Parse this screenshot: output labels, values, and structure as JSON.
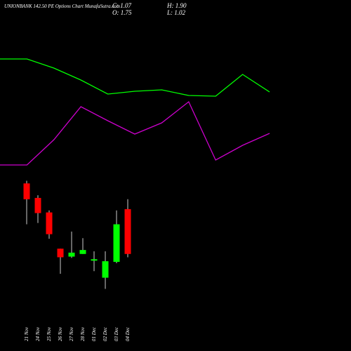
{
  "chart_data": [
    {
      "type": "line",
      "title": "UNIONBANK 142.50  PE Options  Chart MunafaSutra.com",
      "x": [
        0,
        1,
        2,
        3,
        4,
        5,
        6,
        7,
        8,
        9,
        10
      ],
      "xlim": [
        0,
        10
      ],
      "ylim": [
        0,
        100
      ],
      "series": [
        {
          "name": null,
          "color": "#00ff00",
          "values": [
            88,
            88,
            81.5,
            73,
            63,
            65,
            66,
            62,
            61.5,
            77,
            64.5
          ]
        },
        {
          "name": null,
          "color": "#cc00cc",
          "values": [
            12.5,
            12.5,
            30.5,
            54,
            44,
            34.5,
            42.5,
            57.5,
            16,
            26.5,
            35
          ]
        }
      ]
    },
    {
      "type": "candlestick",
      "ohlc_labels": [
        "C: 1.07",
        "H: 1.90",
        "O: 1.75",
        "L: 1.02"
      ],
      "categories": [
        "21 Nov",
        "24 Nov",
        "25 Nov",
        "26 Nov",
        "27 Nov",
        "28 Nov",
        "01 Dec",
        "02 Dec",
        "03 Dec",
        "04 Dec"
      ],
      "open": [
        2.14,
        1.92,
        1.7,
        1.15,
        1.03,
        1.07,
        0.97,
        0.71,
        0.95,
        1.75
      ],
      "high": [
        2.18,
        1.96,
        1.73,
        1.15,
        1.41,
        1.31,
        1.11,
        1.11,
        1.73,
        1.9
      ],
      "low": [
        1.52,
        1.54,
        1.3,
        0.77,
        1.01,
        1.07,
        0.81,
        0.54,
        0.93,
        1.02
      ],
      "close": [
        1.9,
        1.69,
        1.37,
        1.02,
        1.09,
        1.13,
        0.99,
        0.96,
        1.52,
        1.07
      ],
      "ylim": [
        0.45,
        2.26
      ],
      "up_color": "#00ff00",
      "down_color": "#ff0000",
      "wick_color": "#cccccc"
    }
  ]
}
